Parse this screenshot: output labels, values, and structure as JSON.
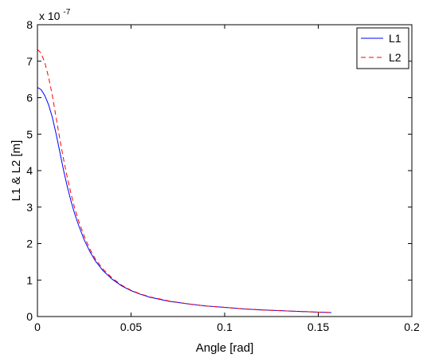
{
  "chart_data": {
    "type": "line",
    "title": "",
    "xlabel": "Angle [rad]",
    "ylabel": "L1 & L2 [m]",
    "y_exponent_base": "x 10",
    "y_exponent_power": "-7",
    "xlim": [
      0,
      0.2
    ],
    "ylim": [
      0,
      8
    ],
    "x_ticks": [
      0,
      0.05,
      0.1,
      0.15,
      0.2
    ],
    "x_tick_labels": [
      "0",
      "0.05",
      "0.1",
      "0.15",
      "0.2"
    ],
    "y_ticks": [
      0,
      1,
      2,
      3,
      4,
      5,
      6,
      7,
      8
    ],
    "y_tick_labels": [
      "0",
      "1",
      "2",
      "3",
      "4",
      "5",
      "6",
      "7",
      "8"
    ],
    "grid": false,
    "legend": {
      "placement": "top-right"
    },
    "series": [
      {
        "name": "L1",
        "color": "#0000ff",
        "dash": "solid",
        "x": [
          0,
          0.002,
          0.004,
          0.006,
          0.008,
          0.01,
          0.012,
          0.014,
          0.016,
          0.018,
          0.02,
          0.022,
          0.025,
          0.028,
          0.031,
          0.035,
          0.04,
          0.045,
          0.05,
          0.055,
          0.06,
          0.07,
          0.08,
          0.09,
          0.1,
          0.11,
          0.12,
          0.13,
          0.14,
          0.15,
          0.157
        ],
        "y": [
          6.28,
          6.22,
          6.05,
          5.8,
          5.45,
          5.0,
          4.5,
          4.0,
          3.55,
          3.15,
          2.8,
          2.5,
          2.1,
          1.78,
          1.52,
          1.26,
          1.02,
          0.84,
          0.71,
          0.61,
          0.53,
          0.42,
          0.35,
          0.29,
          0.25,
          0.21,
          0.18,
          0.16,
          0.14,
          0.12,
          0.11
        ]
      },
      {
        "name": "L2",
        "color": "#ff0000",
        "dash": "dashed",
        "x": [
          0,
          0.002,
          0.004,
          0.006,
          0.008,
          0.01,
          0.012,
          0.014,
          0.016,
          0.018,
          0.02,
          0.022,
          0.025,
          0.028,
          0.031,
          0.035,
          0.04,
          0.045,
          0.05,
          0.055,
          0.06,
          0.07,
          0.08,
          0.09,
          0.1,
          0.11,
          0.12,
          0.13,
          0.14,
          0.15,
          0.157
        ],
        "y": [
          7.32,
          7.22,
          6.95,
          6.55,
          6.05,
          5.45,
          4.85,
          4.3,
          3.8,
          3.35,
          2.95,
          2.62,
          2.2,
          1.85,
          1.57,
          1.3,
          1.05,
          0.86,
          0.72,
          0.62,
          0.54,
          0.43,
          0.35,
          0.29,
          0.25,
          0.21,
          0.18,
          0.16,
          0.14,
          0.12,
          0.11
        ]
      }
    ]
  }
}
